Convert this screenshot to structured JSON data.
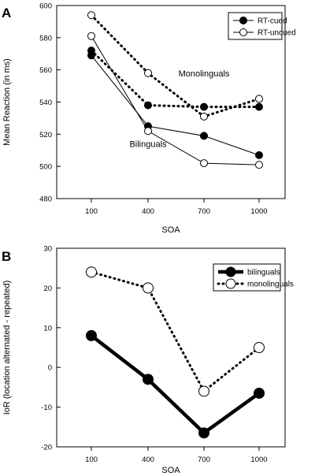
{
  "chart_data": [
    {
      "panel": "A",
      "type": "line",
      "title": "",
      "xlabel": "SOA",
      "ylabel": "Mean Reaction (in ms)",
      "ylim": [
        480,
        600
      ],
      "yticks": [
        480,
        500,
        520,
        540,
        560,
        580,
        600
      ],
      "categories": [
        "100",
        "400",
        "700",
        "1000"
      ],
      "legend_placement": "top-right",
      "legend": [
        {
          "label": "RT-cued",
          "marker": "filled-circle"
        },
        {
          "label": "RT-uncued",
          "marker": "open-circle"
        }
      ],
      "annotations": [
        {
          "text": "Monolinguals",
          "at": {
            "category": "700",
            "value": 556
          }
        },
        {
          "text": "Bilinguals",
          "at": {
            "category": "400",
            "value": 512
          }
        }
      ],
      "series": [
        {
          "group": "Monolinguals",
          "measure": "RT-cued",
          "line": "dotted",
          "marker": "filled",
          "values": [
            572,
            538,
            537,
            537
          ]
        },
        {
          "group": "Monolinguals",
          "measure": "RT-uncued",
          "line": "dotted",
          "marker": "open",
          "values": [
            594,
            558,
            531,
            542
          ]
        },
        {
          "group": "Bilinguals",
          "measure": "RT-cued",
          "line": "solid",
          "marker": "filled",
          "values": [
            569,
            525,
            519,
            507
          ]
        },
        {
          "group": "Bilinguals",
          "measure": "RT-uncued",
          "line": "solid",
          "marker": "open",
          "values": [
            581,
            522,
            502,
            501
          ]
        }
      ]
    },
    {
      "panel": "B",
      "type": "line",
      "title": "",
      "xlabel": "SOA",
      "ylabel": "IoR (location alternated - repeated)",
      "ylim": [
        -20,
        30
      ],
      "yticks": [
        -20,
        -10,
        0,
        10,
        20,
        30
      ],
      "categories": [
        "100",
        "400",
        "700",
        "1000"
      ],
      "legend_placement": "top-right",
      "series": [
        {
          "name": "bilinguals",
          "line": "solid-thick",
          "marker": "filled",
          "values": [
            8,
            -3,
            -16.5,
            -6.5
          ]
        },
        {
          "name": "monolinguals",
          "line": "dotted",
          "marker": "open",
          "values": [
            24,
            20,
            -6,
            5
          ]
        }
      ]
    }
  ]
}
